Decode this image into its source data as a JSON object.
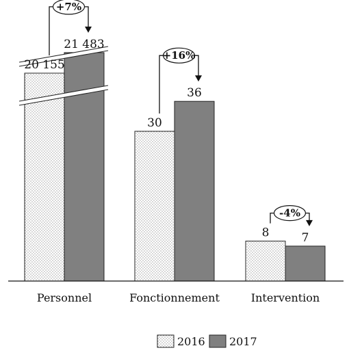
{
  "chart_data": {
    "type": "bar",
    "categories": [
      "Personnel",
      "Fonctionnement",
      "Intervention"
    ],
    "series": [
      {
        "name": "2016",
        "values": [
          20155,
          30,
          8
        ],
        "labels": [
          "20 155",
          "30",
          "8"
        ],
        "pattern": "dotted",
        "color": "#ffffff"
      },
      {
        "name": "2017",
        "values": [
          21483,
          36,
          7
        ],
        "labels": [
          "21 483",
          "36",
          "7"
        ],
        "pattern": "solid",
        "color": "#808080"
      }
    ],
    "changes": [
      "+7%",
      "+16%",
      "-4%"
    ],
    "axis_break": {
      "category": "Personnel"
    },
    "legend_position": "bottom",
    "grid": false,
    "xlabel": "",
    "ylabel": ""
  }
}
